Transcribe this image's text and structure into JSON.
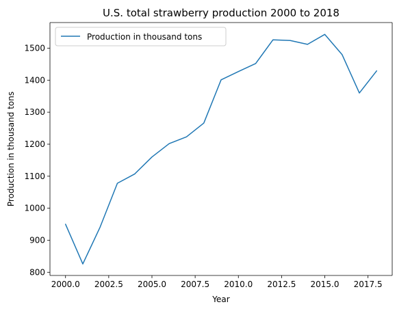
{
  "chart_data": {
    "type": "line",
    "title": "U.S. total strawberry production 2000 to 2018",
    "xlabel": "Year",
    "ylabel": "Production in thousand tons",
    "xlim": [
      1999.1,
      2018.9
    ],
    "ylim": [
      790,
      1580
    ],
    "xticks": [
      2000.0,
      2002.5,
      2005.0,
      2007.5,
      2010.0,
      2012.5,
      2015.0,
      2017.5
    ],
    "xtick_labels": [
      "2000.0",
      "2002.5",
      "2005.0",
      "2007.5",
      "2010.0",
      "2012.5",
      "2015.0",
      "2017.5"
    ],
    "yticks": [
      800,
      900,
      1000,
      1100,
      1200,
      1300,
      1400,
      1500
    ],
    "ytick_labels": [
      "800",
      "900",
      "1000",
      "1100",
      "1200",
      "1300",
      "1400",
      "1500"
    ],
    "grid": false,
    "legend_position": "top-left",
    "x": [
      2000,
      2001,
      2002,
      2003,
      2004,
      2005,
      2006,
      2007,
      2008,
      2009,
      2010,
      2011,
      2012,
      2013,
      2014,
      2015,
      2016,
      2017,
      2018
    ],
    "series": [
      {
        "name": "Production in thousand tons",
        "color": "#1f77b4",
        "values": [
          950,
          826,
          941,
          1078,
          1107,
          1160,
          1202,
          1223,
          1266,
          1401,
          1427,
          1452,
          1526,
          1524,
          1512,
          1543,
          1480,
          1360,
          1429
        ]
      }
    ]
  }
}
